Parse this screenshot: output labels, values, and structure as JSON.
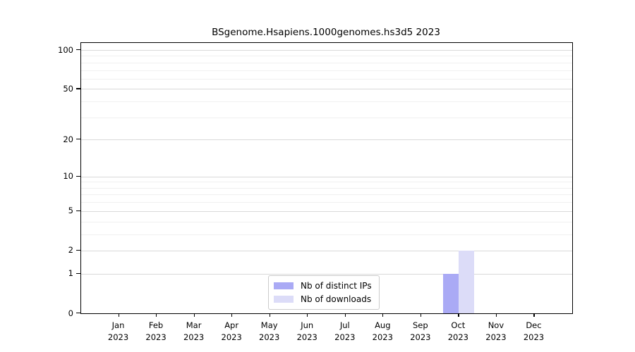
{
  "chart_data": {
    "type": "bar",
    "title": "BSgenome.Hsapiens.1000genomes.hs3d5 2023",
    "categories": [
      "Jan",
      "Feb",
      "Mar",
      "Apr",
      "May",
      "Jun",
      "Jul",
      "Aug",
      "Sep",
      "Oct",
      "Nov",
      "Dec"
    ],
    "year_label": "2023",
    "series": [
      {
        "name": "Nb of distinct IPs",
        "color": "#aaaaf5",
        "values": [
          0,
          0,
          0,
          0,
          0,
          0,
          0,
          0,
          0,
          1,
          0,
          0
        ]
      },
      {
        "name": "Nb of downloads",
        "color": "#dcdcf8",
        "values": [
          0,
          0,
          0,
          0,
          0,
          0,
          0,
          0,
          0,
          2,
          0,
          0
        ]
      }
    ],
    "yscale": "log1p",
    "ylim": [
      0,
      100
    ],
    "yticks_major": [
      0,
      1,
      2,
      5,
      10,
      20,
      50,
      100
    ],
    "yticks_minor": [
      3,
      4,
      6,
      7,
      8,
      9,
      30,
      40,
      60,
      70,
      80,
      90
    ],
    "grid": "horizontal",
    "legend_position": "bottom-center"
  }
}
